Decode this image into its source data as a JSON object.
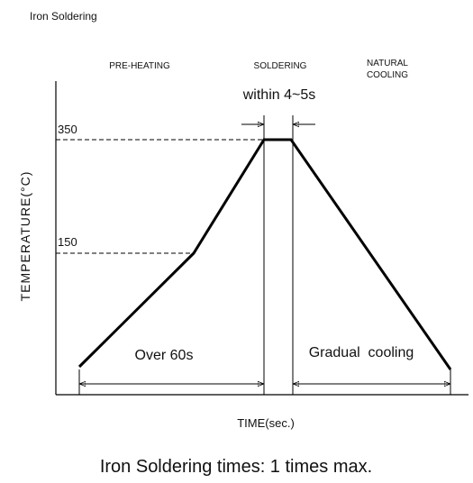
{
  "title": "Iron Soldering",
  "phases": {
    "preheating": "PRE-HEATING",
    "soldering": "SOLDERING",
    "cooling": [
      "NATURAL",
      "COOLING"
    ]
  },
  "soldering_time": "within 4~5s",
  "levels": {
    "peak": "350",
    "preheat": "150"
  },
  "intervals": {
    "preheat": "Over 60s",
    "cooling": "Gradual  cooling"
  },
  "axes": {
    "y": "TEMPERATURE(°C)",
    "x": "TIME(sec.)"
  },
  "note": "Iron Soldering times: 1 times max."
}
